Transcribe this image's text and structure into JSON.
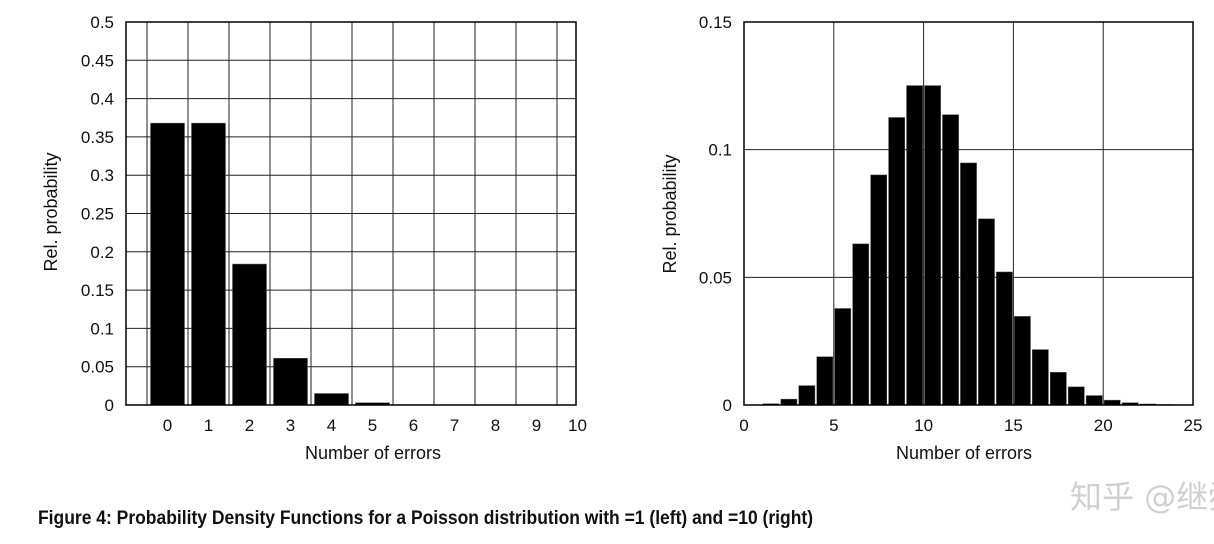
{
  "caption": "Figure 4: Probability Density Functions for a Poisson distribution with =1 (left) and =10 (right)",
  "watermark": "知乎 @继舜",
  "colors": {
    "bar": "#000000",
    "grid": "#222222",
    "background": "#ffffff"
  },
  "chart_data": [
    {
      "type": "bar",
      "xlabel": "Number of errors",
      "ylabel": "Rel. probability",
      "grid": true,
      "ylim": [
        0,
        0.5
      ],
      "yticks": [
        "0",
        "0.05",
        "0.1",
        "0.15",
        "0.2",
        "0.25",
        "0.3",
        "0.35",
        "0.4",
        "0.45",
        "0.5"
      ],
      "categories": [
        "0",
        "1",
        "2",
        "3",
        "4",
        "5",
        "6",
        "7",
        "8",
        "9",
        "10"
      ],
      "values": [
        0.368,
        0.368,
        0.184,
        0.061,
        0.015,
        0.003,
        0.0005,
        0.0001,
        0.0,
        0.0,
        0.0
      ]
    },
    {
      "type": "bar",
      "xlabel": "Number of errors",
      "ylabel": "Rel. probability",
      "grid": true,
      "xlim": [
        0,
        25
      ],
      "ylim": [
        0,
        0.15
      ],
      "xticks": [
        "0",
        "5",
        "10",
        "15",
        "20",
        "25"
      ],
      "yticks": [
        "0",
        "0.05",
        "0.1",
        "0.15"
      ],
      "x": [
        0,
        1,
        2,
        3,
        4,
        5,
        6,
        7,
        8,
        9,
        10,
        11,
        12,
        13,
        14,
        15,
        16,
        17,
        18,
        19,
        20,
        21,
        22,
        23,
        24
      ],
      "values": [
        5e-05,
        0.0005,
        0.0023,
        0.0076,
        0.0189,
        0.0378,
        0.0631,
        0.0901,
        0.1126,
        0.1251,
        0.1251,
        0.1137,
        0.0948,
        0.0729,
        0.0521,
        0.0347,
        0.0217,
        0.0128,
        0.0071,
        0.0037,
        0.0019,
        0.0009,
        0.0004,
        0.0002,
        0.0001
      ]
    }
  ]
}
